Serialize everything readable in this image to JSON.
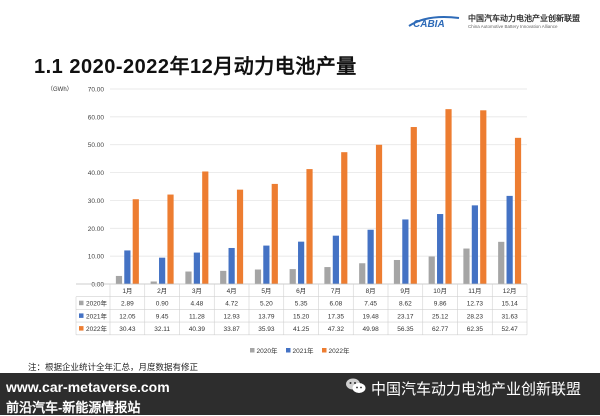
{
  "header": {
    "logo_text": "CABIA",
    "org_name_zh": "中国汽车动力电池产业创新联盟",
    "org_name_en": "China Automotive Battery Innovation Alliance"
  },
  "title": "1.1  2020-2022年12月动力电池产量",
  "note": "注：根据企业统计全年汇总，月度数据有修正",
  "footer": {
    "website": "www.car-metaverse.com",
    "slogan": "前沿汽车-新能源情报站",
    "wechat_icon": "wechat-icon",
    "watermark": "中国汽车动力电池产业创新联盟"
  },
  "chart_data": {
    "type": "bar",
    "unit_label": "（GWh）",
    "categories": [
      "1月",
      "2月",
      "3月",
      "4月",
      "5月",
      "6月",
      "7月",
      "8月",
      "9月",
      "10月",
      "11月",
      "12月"
    ],
    "series": [
      {
        "name": "2020年",
        "color": "#a5a5a5",
        "values": [
          2.89,
          0.9,
          4.48,
          4.72,
          5.2,
          5.35,
          6.08,
          7.45,
          8.62,
          9.86,
          12.73,
          15.14
        ]
      },
      {
        "name": "2021年",
        "color": "#4472c4",
        "values": [
          12.05,
          9.45,
          11.28,
          12.93,
          13.79,
          15.2,
          17.35,
          19.48,
          23.17,
          25.12,
          28.23,
          31.63
        ]
      },
      {
        "name": "2022年",
        "color": "#ed7d31",
        "values": [
          30.43,
          32.11,
          40.39,
          33.87,
          35.93,
          41.25,
          47.32,
          49.98,
          56.35,
          62.77,
          62.35,
          52.47
        ]
      }
    ],
    "table_values": [
      [
        "2.89",
        "0.90",
        "4.48",
        "4.72",
        "5.20",
        "5.35",
        "6.08",
        "7.45",
        "8.62",
        "9.86",
        "12.73",
        "15.14"
      ],
      [
        "12.05",
        "9.45",
        "11.28",
        "12.93",
        "13.79",
        "15.20",
        "17.35",
        "19.48",
        "23.17",
        "25.12",
        "28.23",
        "31.63"
      ],
      [
        "30.43",
        "32.11",
        "40.39",
        "33.87",
        "35.93",
        "41.25",
        "47.32",
        "49.98",
        "56.35",
        "62.77",
        "62.35",
        "52.47"
      ]
    ],
    "y_ticks": [
      "0.00",
      "10.00",
      "20.00",
      "30.00",
      "40.00",
      "50.00",
      "60.00",
      "70.00"
    ],
    "ylim": [
      0,
      70
    ],
    "grid": true,
    "legend_position": "bottom"
  }
}
